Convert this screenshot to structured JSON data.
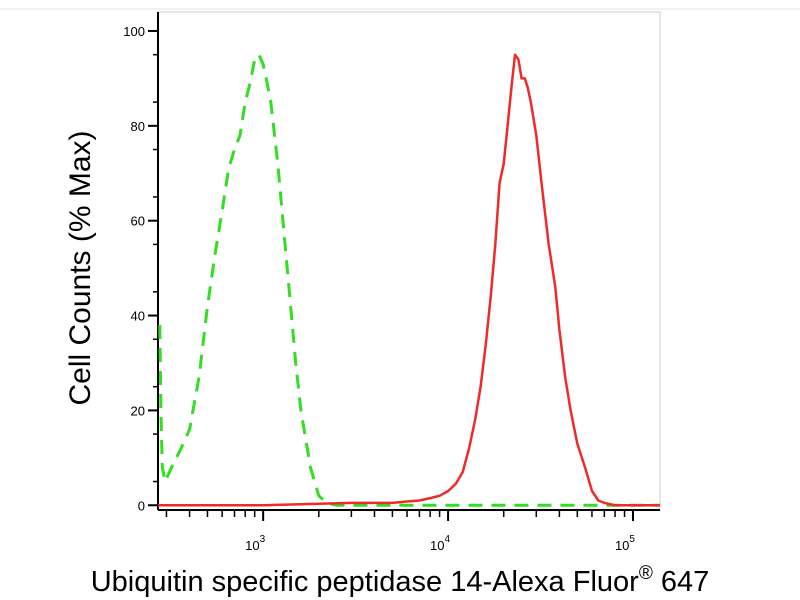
{
  "chart_data": {
    "type": "line",
    "title": "",
    "xlabel": "Ubiquitin specific peptidase 14-Alexa Fluor",
    "xlabel_sup": "®",
    "xlabel_tail": " 647",
    "ylabel": "Cell Counts (% Max)",
    "x_scale": "log",
    "xlim": [
      270,
      140000
    ],
    "ylim": [
      -1,
      104
    ],
    "x_ticks": [
      {
        "value": 1000,
        "base": "10",
        "exp": "3"
      },
      {
        "value": 10000,
        "base": "10",
        "exp": "4"
      },
      {
        "value": 100000,
        "base": "10",
        "exp": "5"
      }
    ],
    "y_ticks": [
      {
        "value": 0,
        "label": "0"
      },
      {
        "value": 20,
        "label": "20"
      },
      {
        "value": 40,
        "label": "40"
      },
      {
        "value": 60,
        "label": "60"
      },
      {
        "value": 80,
        "label": "80"
      },
      {
        "value": 100,
        "label": "100"
      }
    ],
    "grid": false,
    "series": [
      {
        "style": "dashed",
        "color": "#33dd22",
        "x": [
          276,
          280,
          285,
          295,
          320,
          360,
          400,
          450,
          500,
          550,
          600,
          650,
          700,
          750,
          800,
          850,
          900,
          950,
          1000,
          1050,
          1100,
          1200,
          1300,
          1400,
          1500,
          1600,
          1800,
          2000,
          2200,
          2500,
          3000,
          5000,
          10000,
          30000,
          100000,
          140000
        ],
        "y": [
          38,
          20,
          8,
          5,
          8,
          12,
          16,
          27,
          42,
          53,
          62,
          71,
          75,
          78,
          85,
          89,
          94,
          95,
          93,
          89,
          85,
          72,
          57,
          43,
          30,
          20,
          8,
          2,
          0.5,
          0,
          0,
          0,
          0,
          0,
          0,
          0
        ]
      },
      {
        "style": "solid",
        "color": "#ee2a2a",
        "x": [
          270,
          500,
          1000,
          2000,
          3000,
          4000,
          5000,
          6000,
          7000,
          8000,
          9000,
          10000,
          11000,
          12000,
          13000,
          14000,
          15000,
          16000,
          17000,
          18000,
          19000,
          20000,
          21000,
          22000,
          23000,
          24000,
          25000,
          26000,
          27000,
          28000,
          30000,
          32000,
          35000,
          38000,
          40000,
          43000,
          46000,
          50000,
          55000,
          60000,
          65000,
          70000,
          80000,
          100000,
          140000
        ],
        "y": [
          0,
          0,
          0,
          0.3,
          0.5,
          0.5,
          0.5,
          0.8,
          1,
          1.5,
          2,
          3,
          4.5,
          7,
          12,
          18,
          25,
          34,
          44,
          55,
          68,
          72,
          80,
          88,
          95,
          94,
          90,
          90,
          88,
          85,
          78,
          68,
          55,
          46,
          37,
          27,
          20,
          13,
          8,
          3,
          1,
          0.5,
          0,
          0,
          0
        ]
      }
    ]
  }
}
